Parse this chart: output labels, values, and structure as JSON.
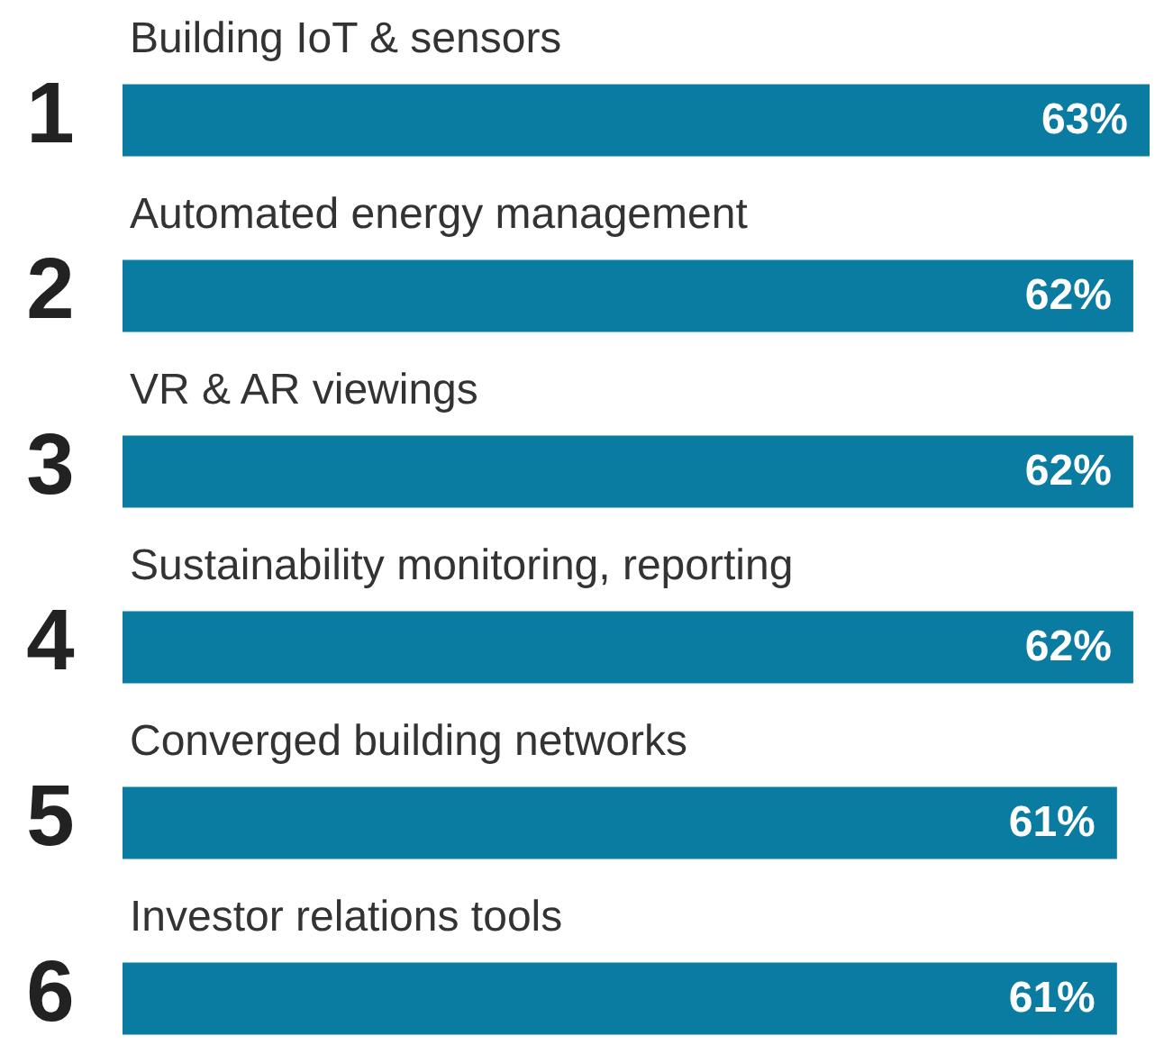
{
  "chart_data": {
    "type": "bar",
    "orientation": "horizontal",
    "categories": [
      "Building IoT & sensors",
      "Automated energy management",
      "VR & AR viewings",
      "Sustainability monitoring, reporting",
      "Converged building networks",
      "Investor relations tools"
    ],
    "values": [
      63,
      62,
      62,
      62,
      61,
      61
    ],
    "value_labels": [
      "63%",
      "62%",
      "62%",
      "62%",
      "61%",
      "61%"
    ],
    "color": "#0a7ba1",
    "annotations": [
      "1",
      "2",
      "3",
      "4",
      "5",
      "6"
    ]
  }
}
